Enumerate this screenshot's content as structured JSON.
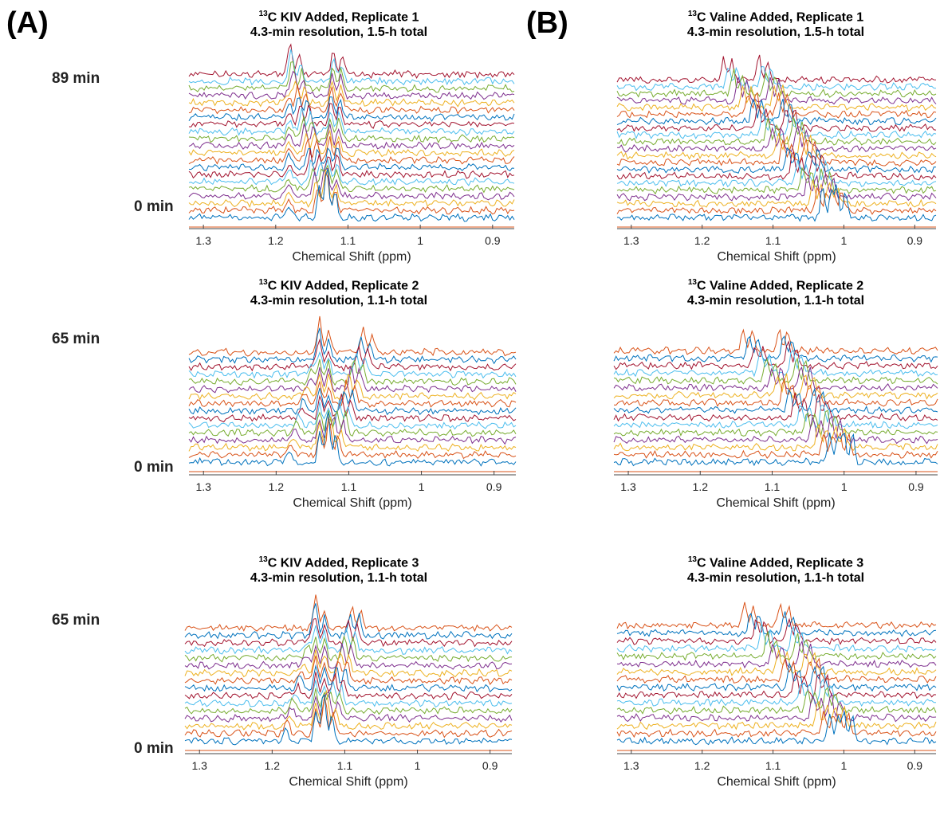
{
  "panels": [
    {
      "label": "(A)"
    },
    {
      "label": "(B)"
    }
  ],
  "chart_data": [
    {
      "type": "line",
      "title_isotope": "13",
      "title_line1": "C KIV Added, Replicate 1",
      "title_line2": "4.3-min resolution, 1.5-h total",
      "xlabel": "Chemical Shift (ppm)",
      "x_ticks": [
        "1.3",
        "1.2",
        "1.1",
        "1",
        "0.9"
      ],
      "xlim": [
        1.32,
        0.87
      ],
      "x_reversed": true,
      "time_start_label": "0 min",
      "time_end_label": "89 min",
      "n_spectra": 21,
      "peak_start_ppm": [
        1.14,
        1.13
      ],
      "peak_end_ppm": [
        1.18,
        1.12
      ],
      "peak_split_ppm": 0.07
    },
    {
      "type": "line",
      "title_isotope": "13",
      "title_line1": "C Valine Added, Replicate 1",
      "title_line2": "4.3-min resolution, 1.5-h total",
      "xlabel": "Chemical Shift (ppm)",
      "x_ticks": [
        "1.3",
        "1.2",
        "1.1",
        "1",
        "0.9"
      ],
      "xlim": [
        1.32,
        0.87
      ],
      "x_reversed": true,
      "time_start_label": "",
      "time_end_label": "",
      "n_spectra": 21,
      "peak_start_ppm": [
        1.03,
        1.01
      ],
      "peak_end_ppm": [
        1.17,
        1.12
      ],
      "peak_split_ppm": 0.0
    },
    {
      "type": "line",
      "title_isotope": "13",
      "title_line1": "C KIV Added, Replicate 2",
      "title_line2": "4.3-min resolution, 1.1-h total",
      "xlabel": "Chemical Shift (ppm)",
      "x_ticks": [
        "1.3",
        "1.2",
        "1.1",
        "1",
        "0.9"
      ],
      "xlim": [
        1.32,
        0.87
      ],
      "x_reversed": true,
      "time_start_label": "0 min",
      "time_end_label": "65 min",
      "n_spectra": 16,
      "peak_start_ppm": [
        1.14,
        1.13
      ],
      "peak_end_ppm": [
        1.14,
        1.08
      ],
      "peak_split_ppm": 0.07
    },
    {
      "type": "line",
      "title_isotope": "13",
      "title_line1": "C Valine Added, Replicate 2",
      "title_line2": "4.3-min resolution, 1.1-h total",
      "xlabel": "Chemical Shift (ppm)",
      "x_ticks": [
        "1.3",
        "1.2",
        "1.1",
        "1",
        "0.9"
      ],
      "xlim": [
        1.32,
        0.87
      ],
      "x_reversed": true,
      "time_start_label": "",
      "time_end_label": "",
      "n_spectra": 16,
      "peak_start_ppm": [
        1.02,
        1.0
      ],
      "peak_end_ppm": [
        1.14,
        1.09
      ],
      "peak_split_ppm": 0.0
    },
    {
      "type": "line",
      "title_isotope": "13",
      "title_line1": "C KIV Added, Replicate 3",
      "title_line2": "4.3-min resolution, 1.1-h total",
      "xlabel": "Chemical Shift (ppm)",
      "x_ticks": [
        "1.3",
        "1.2",
        "1.1",
        "1",
        "0.9"
      ],
      "xlim": [
        1.32,
        0.87
      ],
      "x_reversed": true,
      "time_start_label": "0 min",
      "time_end_label": "65 min",
      "n_spectra": 16,
      "peak_start_ppm": [
        1.14,
        1.13
      ],
      "peak_end_ppm": [
        1.14,
        1.09
      ],
      "peak_split_ppm": 0.07
    },
    {
      "type": "line",
      "title_isotope": "13",
      "title_line1": "C Valine Added, Replicate 3",
      "title_line2": "4.3-min resolution, 1.1-h total",
      "xlabel": "Chemical Shift (ppm)",
      "x_ticks": [
        "1.3",
        "1.2",
        "1.1",
        "1",
        "0.9"
      ],
      "xlim": [
        1.32,
        0.87
      ],
      "x_reversed": true,
      "time_start_label": "",
      "time_end_label": "",
      "n_spectra": 16,
      "peak_start_ppm": [
        1.02,
        1.0
      ],
      "peak_end_ppm": [
        1.14,
        1.09
      ],
      "peak_split_ppm": 0.0
    }
  ],
  "series_colors": [
    "#0072BD",
    "#D95319",
    "#EDB120",
    "#7E2F8E",
    "#77AC30",
    "#4DBEEE",
    "#A2142F"
  ]
}
